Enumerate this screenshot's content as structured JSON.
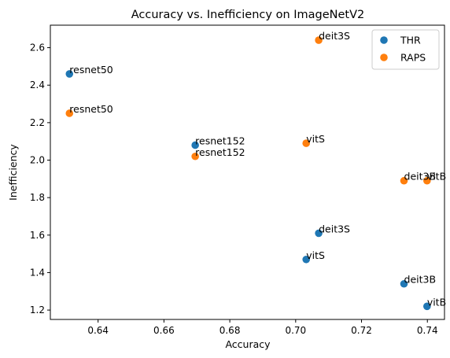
{
  "chart_data": {
    "type": "scatter",
    "title": "Accuracy vs. Inefficiency on ImageNetV2",
    "xlabel": "Accuracy",
    "ylabel": "Inefficiency",
    "xlim": [
      0.6255,
      0.7452
    ],
    "ylim": [
      1.15,
      2.72
    ],
    "xticks": [
      "0.64",
      "0.66",
      "0.68",
      "0.70",
      "0.72",
      "0.74"
    ],
    "xtick_values": [
      0.64,
      0.66,
      0.68,
      0.7,
      0.72,
      0.74
    ],
    "yticks": [
      "1.2",
      "1.4",
      "1.6",
      "1.8",
      "2.0",
      "2.2",
      "2.4",
      "2.6"
    ],
    "ytick_values": [
      1.2,
      1.4,
      1.6,
      1.8,
      2.0,
      2.2,
      2.4,
      2.6
    ],
    "grid": false,
    "legend_position": "top-right",
    "series": [
      {
        "name": "THR",
        "color": "#1f77b4",
        "points": [
          {
            "label": "resnet50",
            "x": 0.6313,
            "y": 2.46
          },
          {
            "label": "resnet152",
            "x": 0.6695,
            "y": 2.08
          },
          {
            "label": "deit3S",
            "x": 0.707,
            "y": 1.61
          },
          {
            "label": "vitS",
            "x": 0.7032,
            "y": 1.47
          },
          {
            "label": "deit3B",
            "x": 0.7329,
            "y": 1.34
          },
          {
            "label": "vitB",
            "x": 0.7399,
            "y": 1.22
          }
        ]
      },
      {
        "name": "RAPS",
        "color": "#ff7f0e",
        "points": [
          {
            "label": "deit3S",
            "x": 0.707,
            "y": 2.64
          },
          {
            "label": "resnet50",
            "x": 0.6313,
            "y": 2.25
          },
          {
            "label": "vitS",
            "x": 0.7032,
            "y": 2.09
          },
          {
            "label": "resnet152",
            "x": 0.6695,
            "y": 2.02
          },
          {
            "label": "deit3B",
            "x": 0.7329,
            "y": 1.89
          },
          {
            "label": "vitB",
            "x": 0.7399,
            "y": 1.89
          }
        ]
      }
    ]
  }
}
